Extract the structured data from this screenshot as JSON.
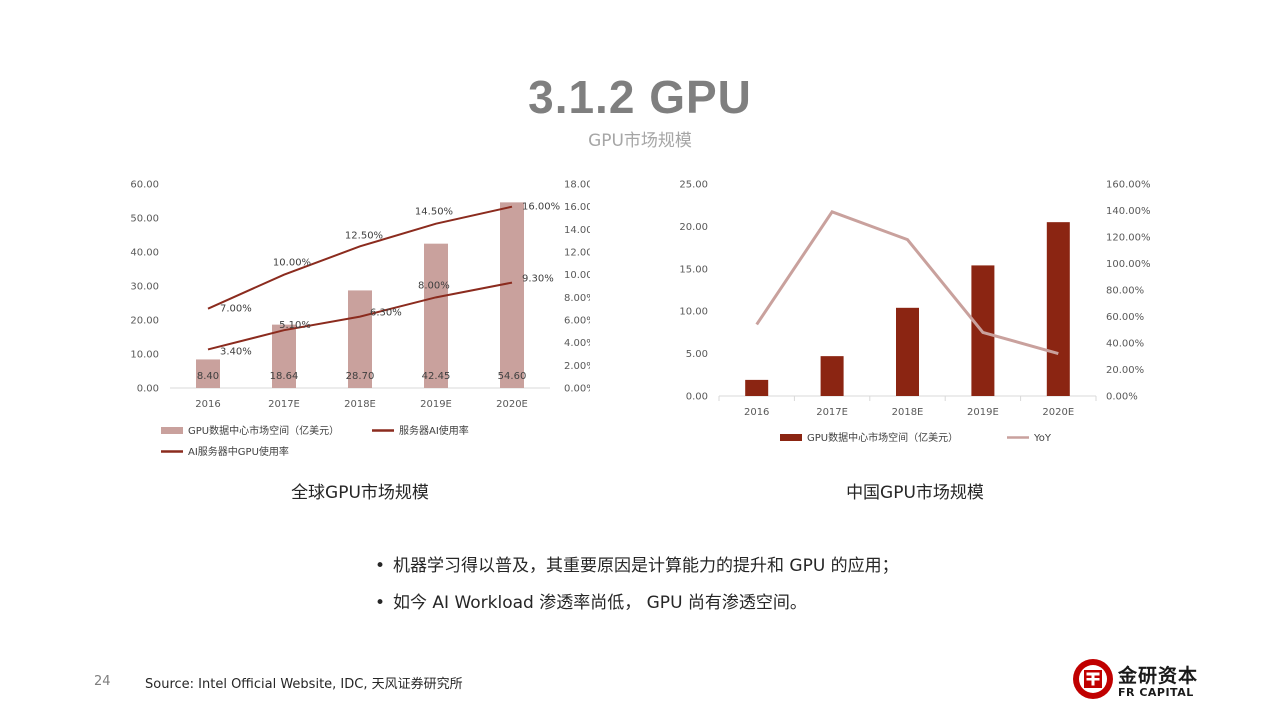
{
  "slide": {
    "title": "3.1.2 GPU",
    "subtitle": "GPU市场规模",
    "page_number": "24",
    "source": "Source: Intel Official Website, IDC, 天风证券研究所",
    "bullets": [
      "机器学习得以普及，其重要原因是计算能力的提升和 GPU 的应用；",
      "如今 AI Workload 渗透率尚低， GPU 尚有渗透空间。"
    ],
    "logo": {
      "name_cn": "金研资本",
      "name_en": "FR CAPITAL",
      "color": "#c00000"
    }
  },
  "chart_data": [
    {
      "type": "bar",
      "title": "",
      "caption": "全球GPU市场规模",
      "categories": [
        "2016",
        "2017E",
        "2018E",
        "2019E",
        "2020E"
      ],
      "ylim": [
        0,
        60
      ],
      "y_ticks": [
        "0.00",
        "10.00",
        "20.00",
        "30.00",
        "40.00",
        "50.00",
        "60.00"
      ],
      "y2lim": [
        0,
        0.18
      ],
      "y2_ticks": [
        "0.00%",
        "2.00%",
        "4.00%",
        "6.00%",
        "8.00%",
        "10.00%",
        "12.00%",
        "14.00%",
        "16.00%",
        "18.00%"
      ],
      "series": [
        {
          "name": "GPU数据中心市场空间（亿美元）",
          "kind": "bar",
          "axis": "left",
          "color": "#c9a19d",
          "values": [
            8.4,
            18.64,
            28.7,
            42.45,
            54.6
          ],
          "labels": [
            "8.40",
            "18.64",
            "28.70",
            "42.45",
            "54.60"
          ]
        },
        {
          "name": "服务器AI使用率",
          "kind": "line",
          "axis": "right",
          "color": "#8b2b1e",
          "values": [
            0.07,
            0.1,
            0.125,
            0.145,
            0.16
          ],
          "labels": [
            "7.00%",
            "10.00%",
            "12.50%",
            "14.50%",
            "16.00%"
          ]
        },
        {
          "name": "AI服务器中GPU使用率",
          "kind": "line",
          "axis": "right",
          "color": "#8b2b1e",
          "values": [
            0.034,
            0.051,
            0.063,
            0.08,
            0.093
          ],
          "labels": [
            "3.40%",
            "5.10%",
            "6.30%",
            "8.00%",
            "9.30%"
          ]
        }
      ],
      "legend": "bottom",
      "grid": false
    },
    {
      "type": "bar",
      "title": "",
      "caption": "中国GPU市场规模",
      "categories": [
        "2016",
        "2017E",
        "2018E",
        "2019E",
        "2020E"
      ],
      "ylim": [
        0,
        25
      ],
      "y_ticks": [
        "0.00",
        "5.00",
        "10.00",
        "15.00",
        "20.00",
        "25.00"
      ],
      "y2lim": [
        0,
        1.6
      ],
      "y2_ticks": [
        "0.00%",
        "20.00%",
        "40.00%",
        "60.00%",
        "80.00%",
        "100.00%",
        "120.00%",
        "140.00%",
        "160.00%"
      ],
      "series": [
        {
          "name": "GPU数据中心市场空间（亿美元）",
          "kind": "bar",
          "axis": "left",
          "color": "#8b2512",
          "values": [
            1.9,
            4.7,
            10.4,
            15.4,
            20.5
          ]
        },
        {
          "name": "YoY",
          "kind": "line",
          "axis": "right",
          "color": "#c9a19d",
          "values": [
            0.54,
            1.39,
            1.18,
            0.48,
            0.32
          ]
        }
      ],
      "legend": "bottom",
      "grid": false
    }
  ]
}
